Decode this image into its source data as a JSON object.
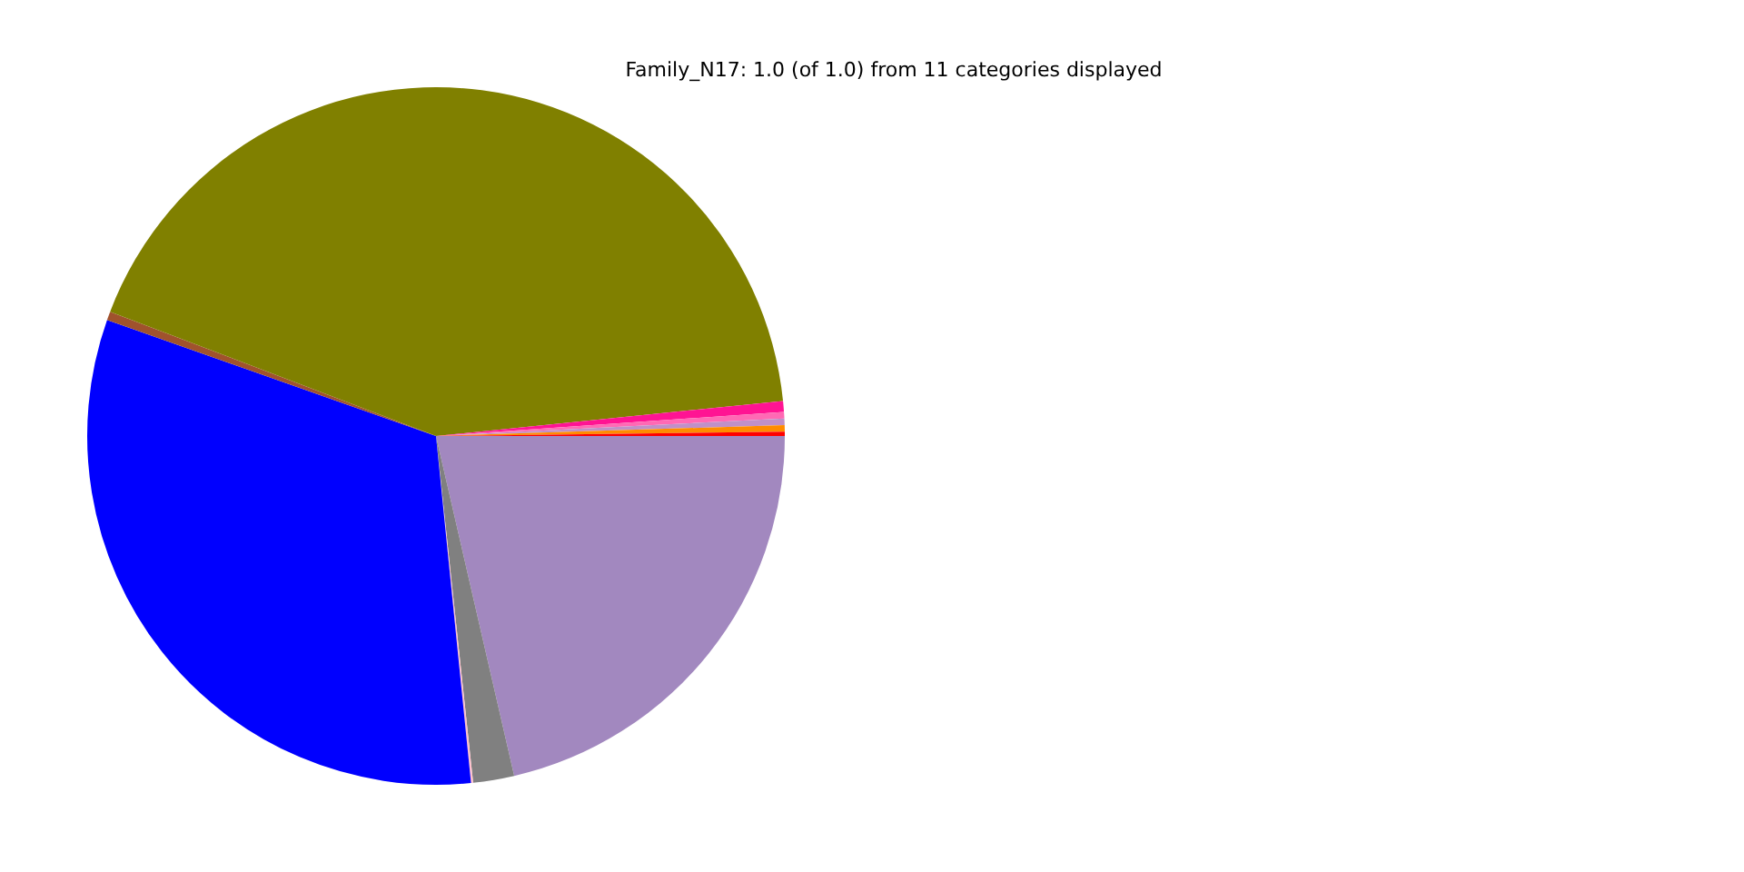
{
  "chart_data": {
    "type": "pie",
    "title": "Family_N17: 1.0 (of 1.0) from 11 categories displayed",
    "categories": [
      null,
      null,
      null,
      null,
      null,
      null,
      null,
      null,
      null,
      null,
      null
    ],
    "values": [
      21.4,
      1.9,
      0.1,
      32,
      0.4,
      42.6,
      0.5,
      0.3,
      0.3,
      0.3,
      0.2
    ],
    "colors": [
      "#a288bf",
      "#808080",
      "#ffc0cb",
      "#0000ff",
      "#a0522d",
      "#808000",
      "#ff1493",
      "#ff69b4",
      "#c090c8",
      "#ff8c00",
      "#ff0000"
    ],
    "legend": false
  }
}
